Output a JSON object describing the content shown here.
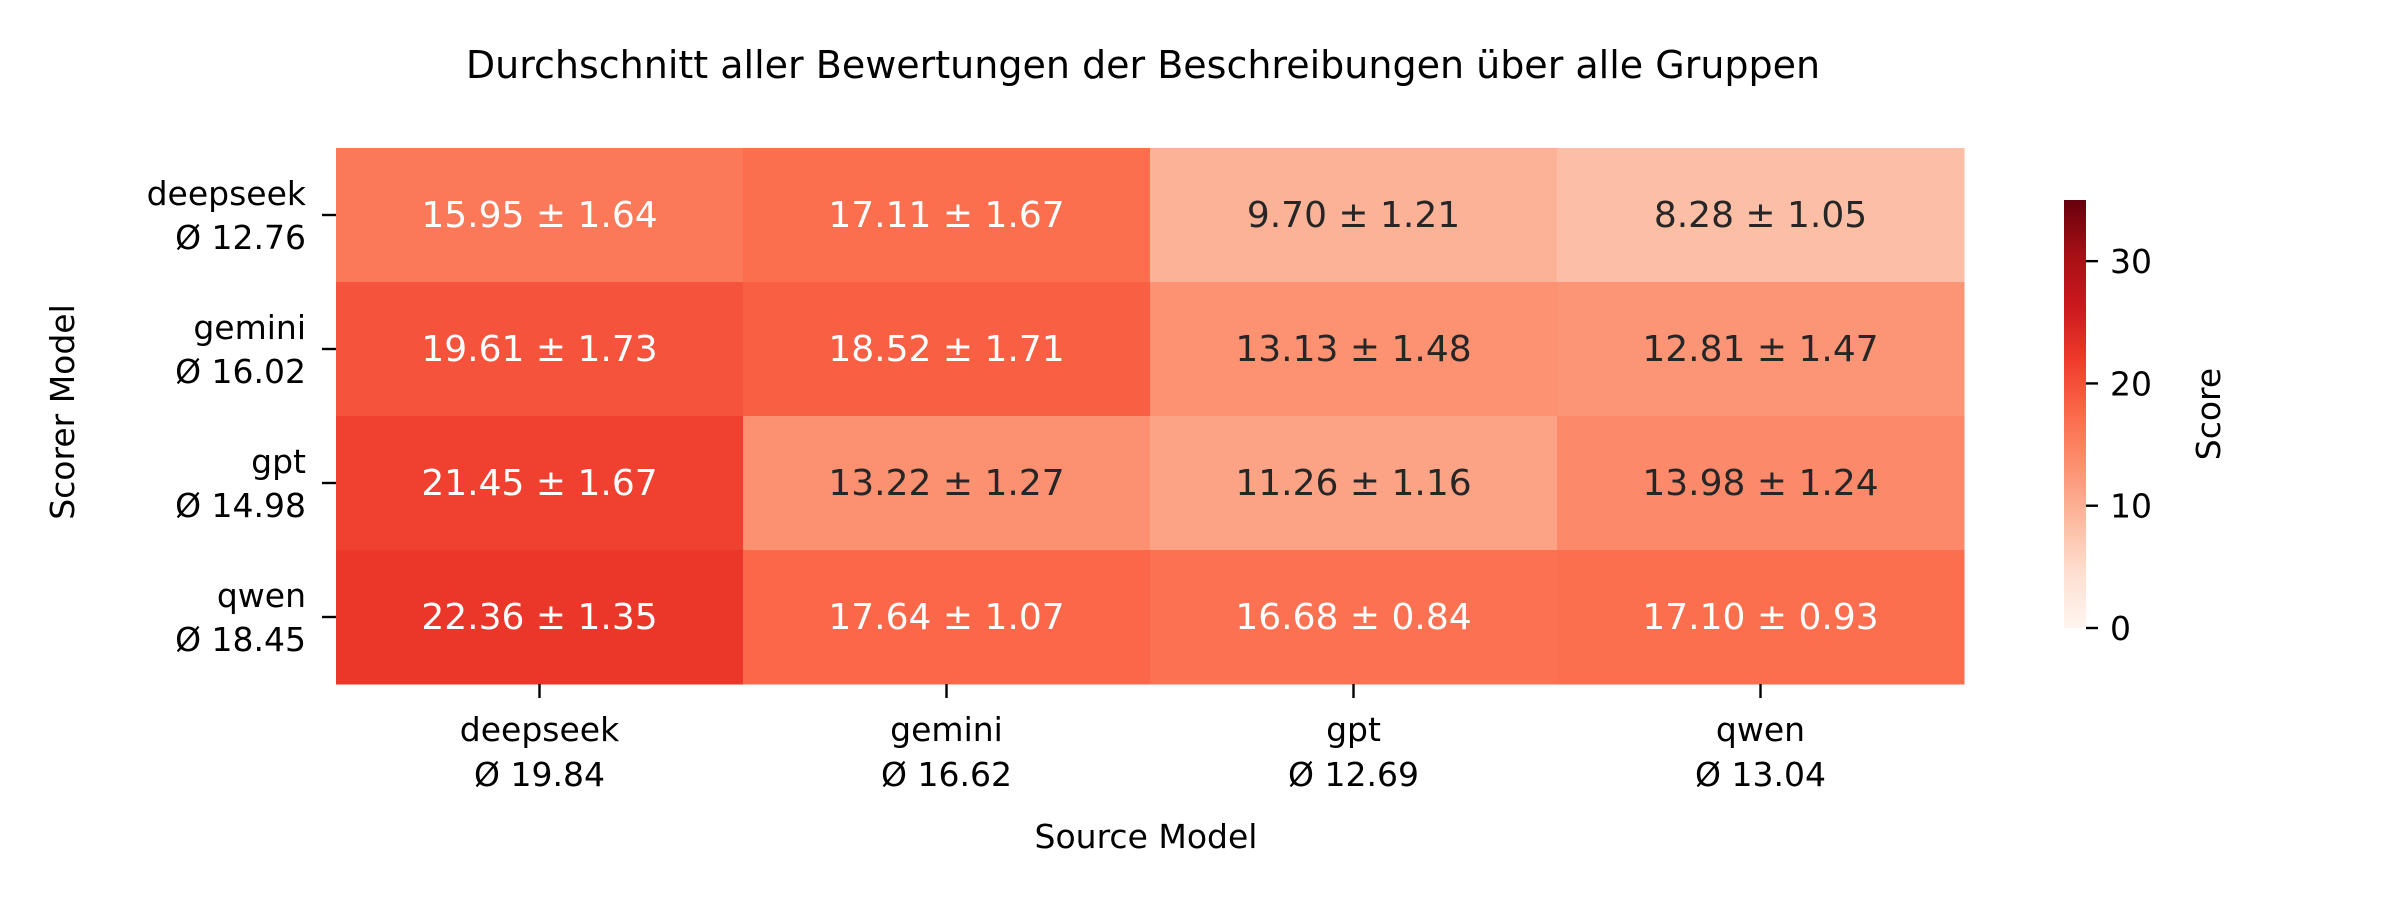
{
  "chart_data": {
    "type": "heatmap",
    "title": "Durchschnitt aller Bewertungen der Beschreibungen über alle Gruppen",
    "xlabel": "Source Model",
    "ylabel": "Scorer Model",
    "x_categories": [
      {
        "name": "deepseek",
        "avg": "Ø 19.84"
      },
      {
        "name": "gemini",
        "avg": "Ø 16.62"
      },
      {
        "name": "gpt",
        "avg": "Ø 12.69"
      },
      {
        "name": "qwen",
        "avg": "Ø 13.04"
      }
    ],
    "y_categories": [
      {
        "name": "deepseek",
        "avg": "Ø 12.76"
      },
      {
        "name": "gemini",
        "avg": "Ø 16.02"
      },
      {
        "name": "gpt",
        "avg": "Ø 14.98"
      },
      {
        "name": "qwen",
        "avg": "Ø 18.45"
      }
    ],
    "values": [
      [
        15.95,
        17.11,
        9.7,
        8.28
      ],
      [
        19.61,
        18.52,
        13.13,
        12.81
      ],
      [
        21.45,
        13.22,
        11.26,
        13.98
      ],
      [
        22.36,
        17.64,
        16.68,
        17.1
      ]
    ],
    "errors": [
      [
        1.64,
        1.67,
        1.21,
        1.05
      ],
      [
        1.73,
        1.71,
        1.48,
        1.47
      ],
      [
        1.67,
        1.27,
        1.16,
        1.24
      ],
      [
        1.35,
        1.07,
        0.84,
        0.93
      ]
    ],
    "cell_labels": [
      [
        "15.95 ± 1.64",
        "17.11 ± 1.67",
        "9.70 ± 1.21",
        "8.28 ± 1.05"
      ],
      [
        "19.61 ± 1.73",
        "18.52 ± 1.71",
        "13.13 ± 1.48",
        "12.81 ± 1.47"
      ],
      [
        "21.45 ± 1.67",
        "13.22 ± 1.27",
        "11.26 ± 1.16",
        "13.98 ± 1.24"
      ],
      [
        "22.36 ± 1.35",
        "17.64 ± 1.07",
        "16.68 ± 0.84",
        "17.10 ± 0.93"
      ]
    ],
    "colorbar": {
      "label": "Score",
      "colormap": "Reds",
      "range": [
        0,
        35
      ],
      "ticks": [
        0,
        10,
        20,
        30
      ],
      "tick_labels": [
        "0",
        "10",
        "20",
        "30"
      ]
    },
    "colors": {
      "text_dark": "#262626",
      "text_light": "#ffffff",
      "cmap": [
        "#fff5f0",
        "#fee0d2",
        "#fcbba1",
        "#fc9272",
        "#fb6a4a",
        "#ef3b2c",
        "#cb181d",
        "#a50f15",
        "#67000d"
      ]
    },
    "grid": false
  }
}
